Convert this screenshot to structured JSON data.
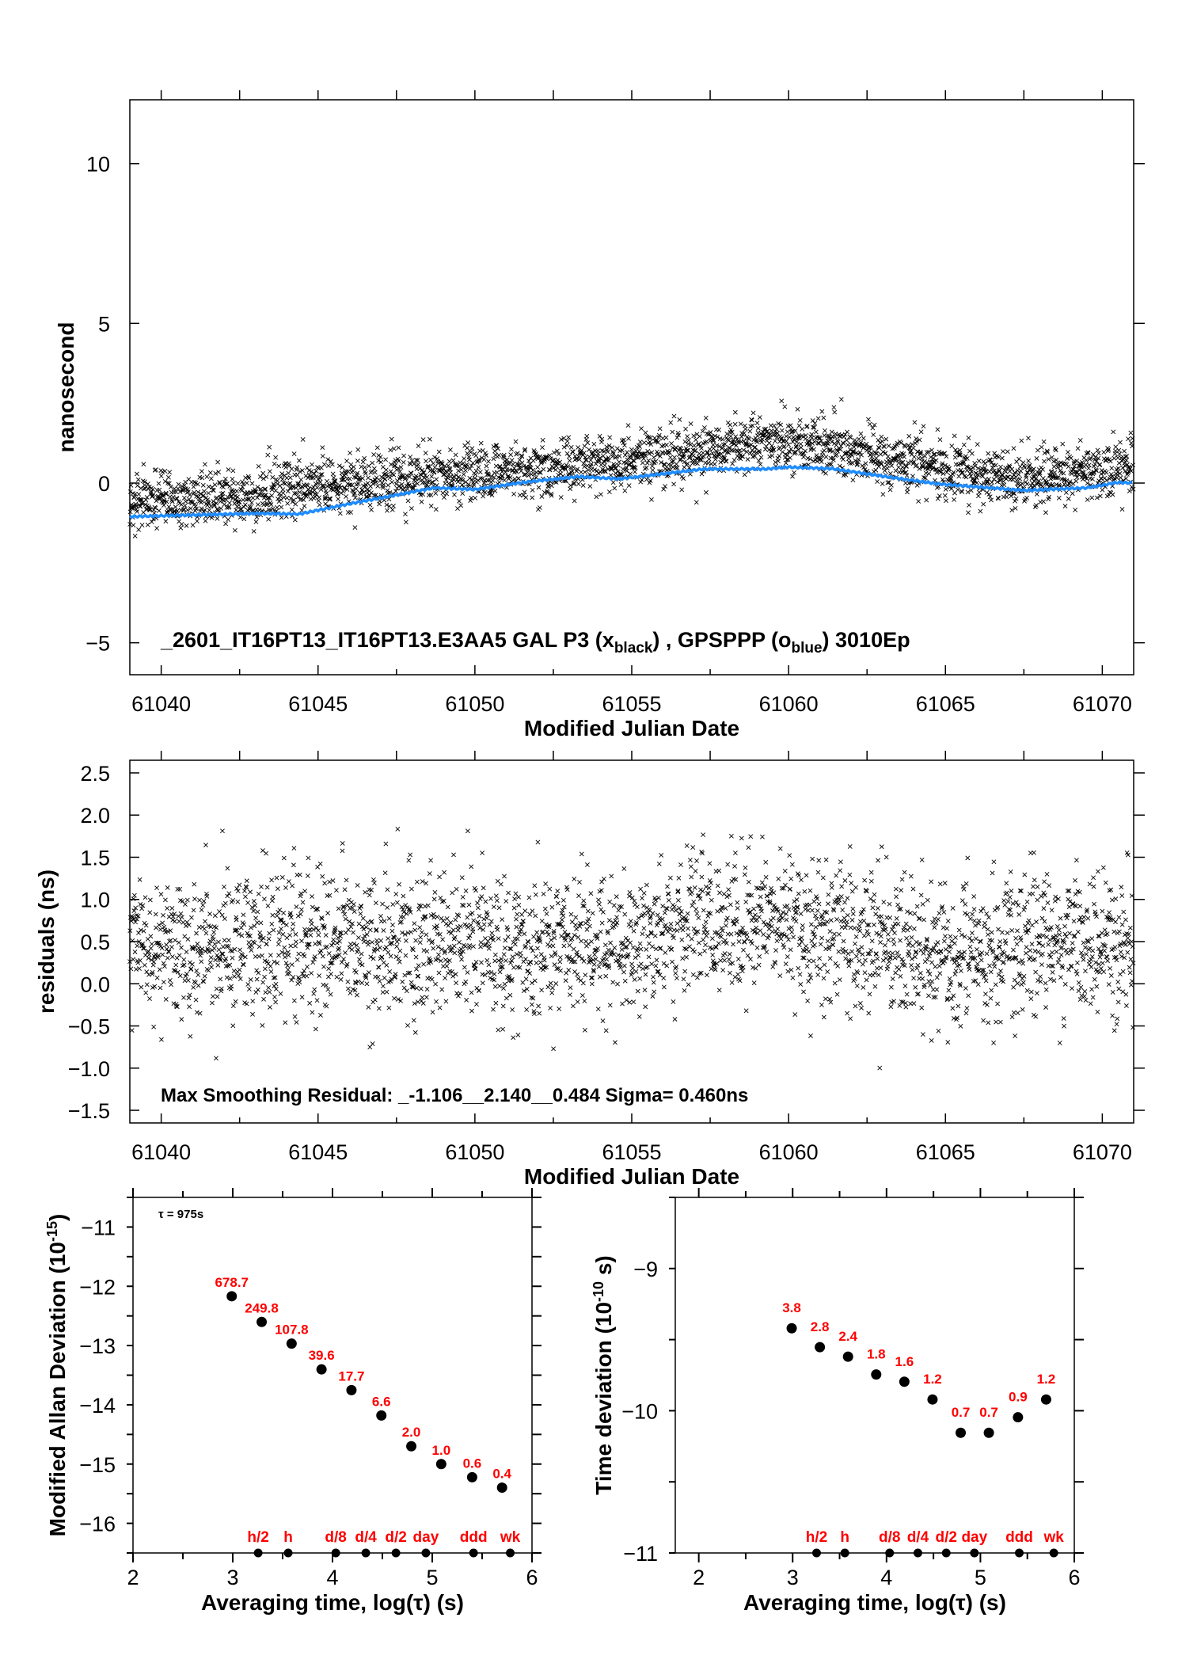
{
  "chart_data": [
    {
      "type": "scatter",
      "xlabel": "Modified Julian Date",
      "ylabel": "nanosecond",
      "xlim": [
        61039,
        61071
      ],
      "ylim": [
        -6,
        12
      ],
      "xticks": [
        61040,
        61045,
        61050,
        61055,
        61060,
        61065,
        61070
      ],
      "xtick_labels": [
        "61040",
        "61045",
        "61050",
        "61055",
        "61060",
        "61065",
        "61070"
      ],
      "yticks": [
        -5,
        0,
        5,
        10
      ],
      "ytick_labels": [
        "−5",
        "0",
        "5",
        "10"
      ],
      "annotation": [
        "_2601_IT16PT13_IT16PT13.E3AA5    GAL P3 (x",
        "black",
        ") ,  GPSPPP (o",
        "blue",
        ")  3010Ep"
      ],
      "series": [
        {
          "marker": "x",
          "color": "#000000",
          "trend": [
            [
              61039,
              -0.6
            ],
            [
              61042,
              -0.5
            ],
            [
              61045,
              -0.1
            ],
            [
              61048,
              0.15
            ],
            [
              61050,
              0.3
            ],
            [
              61053,
              0.5
            ],
            [
              61055,
              0.7
            ],
            [
              61057,
              1.0
            ],
            [
              61059,
              1.3
            ],
            [
              61061,
              1.2
            ],
            [
              61062,
              1.0
            ],
            [
              61064,
              0.6
            ],
            [
              61065,
              0.4
            ],
            [
              61067,
              0.15
            ],
            [
              61068,
              0.2
            ],
            [
              61071,
              0.6
            ]
          ],
          "spread": 0.45
        },
        {
          "marker": "line",
          "color": "#1e8cff",
          "points": [
            [
              61039,
              -1.05
            ],
            [
              61041,
              -1.0
            ],
            [
              61043,
              -0.95
            ],
            [
              61044.4,
              -0.97
            ],
            [
              61046,
              -0.65
            ],
            [
              61048.7,
              -0.15
            ],
            [
              61050,
              -0.2
            ],
            [
              61051.6,
              0.03
            ],
            [
              61053.3,
              0.2
            ],
            [
              61054.6,
              0.13
            ],
            [
              61057.3,
              0.44
            ],
            [
              61059.3,
              0.44
            ],
            [
              61060,
              0.5
            ],
            [
              61061.4,
              0.45
            ],
            [
              61063.1,
              0.2
            ],
            [
              61064.8,
              -0.03
            ],
            [
              61067.5,
              -0.23
            ],
            [
              61069.5,
              -0.15
            ],
            [
              61070.5,
              0.02
            ],
            [
              61071,
              0.0
            ]
          ]
        }
      ]
    },
    {
      "type": "scatter",
      "xlabel": "Modified Julian Date",
      "ylabel": "residuals (ns)",
      "xlim": [
        61039,
        61071
      ],
      "ylim": [
        -1.65,
        2.65
      ],
      "xticks": [
        61040,
        61045,
        61050,
        61055,
        61060,
        61065,
        61070
      ],
      "xtick_labels": [
        "61040",
        "61045",
        "61050",
        "61055",
        "61060",
        "61065",
        "61070"
      ],
      "yticks": [
        -1.5,
        -1.0,
        -0.5,
        0.0,
        0.5,
        1.0,
        1.5,
        2.0,
        2.5
      ],
      "ytick_labels": [
        "−1.5",
        "−1.0",
        "−0.5",
        "0.0",
        "0.5",
        "1.0",
        "1.5",
        "2.0",
        "2.5"
      ],
      "annotation": "Max Smoothing Residual: _-1.106__2.140__0.484  Sigma= 0.460ns",
      "series": [
        {
          "marker": "x",
          "color": "#000000",
          "trend": [
            [
              61039,
              0.4
            ],
            [
              61045,
              0.5
            ],
            [
              61050,
              0.45
            ],
            [
              61055,
              0.5
            ],
            [
              61058,
              0.75
            ],
            [
              61060,
              0.7
            ],
            [
              61063,
              0.5
            ],
            [
              61065,
              0.25
            ],
            [
              61068,
              0.5
            ],
            [
              61071,
              0.45
            ]
          ],
          "spread": 0.42
        }
      ]
    },
    {
      "type": "scatter",
      "xlabel": "Averaging time, log(τ) (s)",
      "ylabel": [
        "Modified Allan Deviation (10",
        "-15",
        ")"
      ],
      "xlim": [
        2,
        6
      ],
      "ylim": [
        -16.5,
        -10.5
      ],
      "xticks": [
        2,
        3,
        4,
        5,
        6
      ],
      "xtick_labels": [
        "2",
        "3",
        "4",
        "5",
        "6"
      ],
      "yticks": [
        -16,
        -15,
        -14,
        -13,
        -12,
        -11
      ],
      "ytick_labels": [
        "−16",
        "−15",
        "−14",
        "−13",
        "−12",
        "−11"
      ],
      "annotation": "τ = 975s",
      "x": [
        2.99,
        3.29,
        3.59,
        3.89,
        4.19,
        4.49,
        4.79,
        5.09,
        5.4,
        5.7
      ],
      "y": [
        -12.168,
        -12.602,
        -12.967,
        -13.402,
        -13.752,
        -14.18,
        -14.699,
        -15.0,
        -15.222,
        -15.398
      ],
      "point_labels": [
        "678.7",
        "249.8",
        "107.8",
        "39.6",
        "17.7",
        "6.6",
        "2.0",
        "1.0",
        "0.6",
        "0.4"
      ],
      "markers": [
        {
          "label": "h/2",
          "x": 3.255
        },
        {
          "label": "h",
          "x": 3.556
        },
        {
          "label": "d/8",
          "x": 4.033
        },
        {
          "label": "d/4",
          "x": 4.334
        },
        {
          "label": "d/2",
          "x": 4.636
        },
        {
          "label": "day",
          "x": 4.936
        },
        {
          "label": "ddd",
          "x": 5.414
        },
        {
          "label": "wk",
          "x": 5.782
        }
      ],
      "point_color": "#000000",
      "label_color": "#ff0000"
    },
    {
      "type": "scatter",
      "xlabel": "Averaging time, log(τ) (s)",
      "ylabel": [
        "Time deviation (10",
        "-10",
        " s)"
      ],
      "xlim": [
        1.75,
        6
      ],
      "ylim": [
        -11,
        -8.5
      ],
      "xticks": [
        2,
        3,
        4,
        5,
        6
      ],
      "xtick_labels": [
        "2",
        "3",
        "4",
        "5",
        "6"
      ],
      "yticks": [
        -11,
        -10,
        -9
      ],
      "ytick_labels": [
        "−11",
        "−10",
        "−9"
      ],
      "x": [
        2.99,
        3.29,
        3.59,
        3.89,
        4.19,
        4.49,
        4.79,
        5.09,
        5.4,
        5.7
      ],
      "y": [
        -9.42,
        -9.553,
        -9.62,
        -9.745,
        -9.796,
        -9.921,
        -10.155,
        -10.155,
        -10.046,
        -9.921
      ],
      "point_labels": [
        "3.8",
        "2.8",
        "2.4",
        "1.8",
        "1.6",
        "1.2",
        "0.7",
        "0.7",
        "0.9",
        "1.2"
      ],
      "markers": [
        {
          "label": "h/2",
          "x": 3.255
        },
        {
          "label": "h",
          "x": 3.556
        },
        {
          "label": "d/8",
          "x": 4.033
        },
        {
          "label": "d/4",
          "x": 4.334
        },
        {
          "label": "d/2",
          "x": 4.636
        },
        {
          "label": "day",
          "x": 4.936
        },
        {
          "label": "ddd",
          "x": 5.414
        },
        {
          "label": "wk",
          "x": 5.782
        }
      ],
      "point_color": "#000000",
      "label_color": "#ff0000"
    }
  ]
}
